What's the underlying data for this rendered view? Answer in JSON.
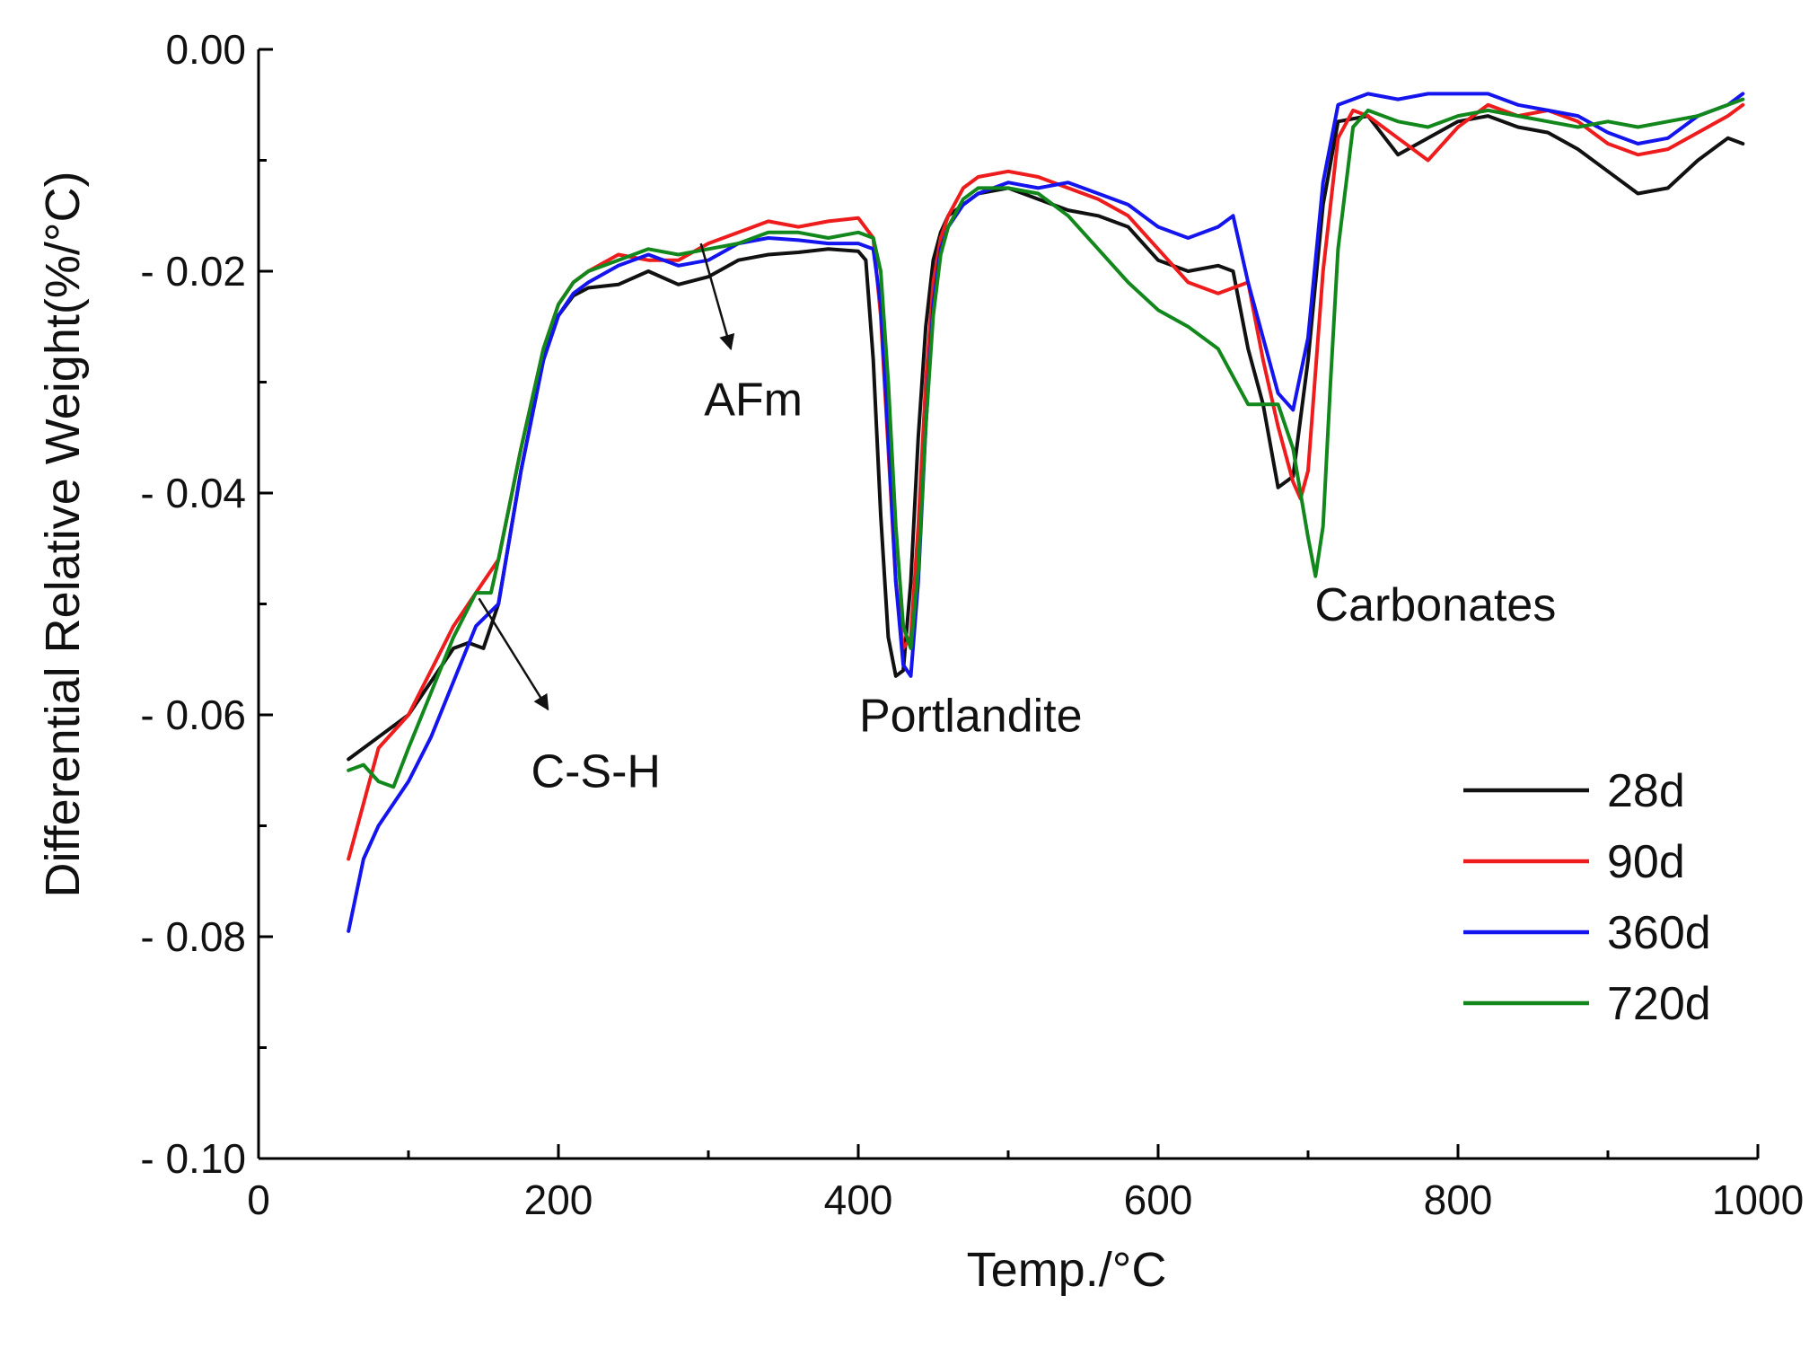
{
  "chart_data": {
    "type": "line",
    "xlabel": "Temp./°C",
    "ylabel": "Differential Relative Weight(%/°C)",
    "xlim": [
      0,
      1000
    ],
    "ylim": [
      -0.1,
      0.0
    ],
    "x_ticks": [
      0,
      200,
      400,
      600,
      800,
      1000
    ],
    "x_tick_labels": [
      "0",
      "200",
      "400",
      "600",
      "800",
      "1000"
    ],
    "y_ticks": [
      0.0,
      -0.02,
      -0.04,
      -0.06,
      -0.08,
      -0.1
    ],
    "y_tick_labels": [
      "0.00",
      "- 0.02",
      "- 0.04",
      "- 0.06",
      "- 0.08",
      "- 0.10"
    ],
    "legend_position": "bottom-right",
    "annotations": [
      {
        "text": "AFm",
        "x": 330,
        "y": -0.033,
        "arrow_from": [
          295,
          -0.0175
        ],
        "arrow_to": [
          315,
          -0.027
        ]
      },
      {
        "text": "Portlandite",
        "x": 475,
        "y": -0.0615
      },
      {
        "text": "Carbonates",
        "x": 785,
        "y": -0.0515
      },
      {
        "text": "C-S-H",
        "x": 225,
        "y": -0.0665,
        "arrow_from": [
          147,
          -0.0495
        ],
        "arrow_to": [
          193,
          -0.0595
        ]
      }
    ],
    "series": [
      {
        "name": "28d",
        "color": "#111111",
        "x": [
          60,
          80,
          100,
          115,
          130,
          140,
          150,
          160,
          175,
          190,
          200,
          210,
          220,
          240,
          260,
          280,
          300,
          320,
          340,
          360,
          380,
          400,
          405,
          410,
          415,
          420,
          425,
          430,
          435,
          440,
          445,
          450,
          455,
          460,
          470,
          480,
          500,
          520,
          540,
          560,
          580,
          600,
          620,
          640,
          650,
          660,
          670,
          680,
          690,
          700,
          710,
          720,
          740,
          760,
          780,
          800,
          820,
          840,
          860,
          880,
          900,
          920,
          940,
          960,
          980,
          990
        ],
        "y": [
          -0.064,
          -0.062,
          -0.06,
          -0.057,
          -0.054,
          -0.0535,
          -0.054,
          -0.05,
          -0.038,
          -0.028,
          -0.024,
          -0.0222,
          -0.0215,
          -0.0212,
          -0.02,
          -0.0212,
          -0.0205,
          -0.019,
          -0.0185,
          -0.0183,
          -0.018,
          -0.0182,
          -0.019,
          -0.028,
          -0.042,
          -0.053,
          -0.0565,
          -0.056,
          -0.048,
          -0.035,
          -0.025,
          -0.019,
          -0.0165,
          -0.015,
          -0.014,
          -0.013,
          -0.0125,
          -0.0135,
          -0.0145,
          -0.015,
          -0.016,
          -0.019,
          -0.02,
          -0.0195,
          -0.02,
          -0.027,
          -0.032,
          -0.0395,
          -0.0385,
          -0.028,
          -0.014,
          -0.0065,
          -0.006,
          -0.0095,
          -0.008,
          -0.0065,
          -0.006,
          -0.007,
          -0.0075,
          -0.009,
          -0.011,
          -0.013,
          -0.0125,
          -0.01,
          -0.008,
          -0.0085
        ]
      },
      {
        "name": "90d",
        "color": "#ee1c1c",
        "x": [
          60,
          70,
          80,
          100,
          115,
          130,
          145,
          160,
          175,
          190,
          200,
          210,
          220,
          240,
          260,
          280,
          300,
          320,
          340,
          360,
          380,
          400,
          410,
          415,
          420,
          425,
          430,
          435,
          440,
          445,
          450,
          455,
          460,
          470,
          480,
          500,
          520,
          540,
          560,
          580,
          600,
          620,
          640,
          660,
          670,
          680,
          690,
          695,
          700,
          710,
          720,
          730,
          740,
          760,
          780,
          800,
          820,
          840,
          860,
          880,
          900,
          920,
          940,
          960,
          980,
          990
        ],
        "y": [
          -0.073,
          -0.068,
          -0.063,
          -0.06,
          -0.056,
          -0.052,
          -0.049,
          -0.046,
          -0.036,
          -0.027,
          -0.023,
          -0.021,
          -0.02,
          -0.0185,
          -0.019,
          -0.019,
          -0.0175,
          -0.0165,
          -0.0155,
          -0.016,
          -0.0155,
          -0.0152,
          -0.017,
          -0.024,
          -0.036,
          -0.048,
          -0.054,
          -0.053,
          -0.043,
          -0.03,
          -0.021,
          -0.017,
          -0.015,
          -0.0125,
          -0.0115,
          -0.011,
          -0.0115,
          -0.0125,
          -0.0135,
          -0.015,
          -0.018,
          -0.021,
          -0.022,
          -0.021,
          -0.028,
          -0.034,
          -0.039,
          -0.0405,
          -0.038,
          -0.02,
          -0.008,
          -0.0055,
          -0.006,
          -0.008,
          -0.01,
          -0.007,
          -0.005,
          -0.006,
          -0.0055,
          -0.0065,
          -0.0085,
          -0.0095,
          -0.009,
          -0.0075,
          -0.006,
          -0.005
        ]
      },
      {
        "name": "360d",
        "color": "#1414ee",
        "x": [
          60,
          70,
          80,
          100,
          115,
          130,
          145,
          160,
          175,
          190,
          200,
          210,
          220,
          240,
          260,
          280,
          300,
          320,
          340,
          360,
          380,
          400,
          410,
          415,
          420,
          425,
          430,
          435,
          440,
          445,
          450,
          455,
          460,
          470,
          480,
          500,
          520,
          540,
          560,
          580,
          600,
          620,
          640,
          650,
          660,
          670,
          680,
          690,
          700,
          710,
          720,
          740,
          760,
          780,
          800,
          820,
          840,
          860,
          880,
          900,
          920,
          940,
          960,
          980,
          990
        ],
        "y": [
          -0.0795,
          -0.073,
          -0.07,
          -0.066,
          -0.062,
          -0.057,
          -0.052,
          -0.05,
          -0.038,
          -0.028,
          -0.024,
          -0.022,
          -0.021,
          -0.0195,
          -0.0185,
          -0.0195,
          -0.019,
          -0.0175,
          -0.017,
          -0.0172,
          -0.0175,
          -0.0175,
          -0.018,
          -0.023,
          -0.035,
          -0.048,
          -0.0555,
          -0.0565,
          -0.048,
          -0.034,
          -0.023,
          -0.018,
          -0.016,
          -0.014,
          -0.013,
          -0.012,
          -0.0125,
          -0.012,
          -0.013,
          -0.014,
          -0.016,
          -0.017,
          -0.016,
          -0.015,
          -0.021,
          -0.026,
          -0.031,
          -0.0325,
          -0.026,
          -0.012,
          -0.005,
          -0.004,
          -0.0045,
          -0.004,
          -0.004,
          -0.004,
          -0.005,
          -0.0055,
          -0.006,
          -0.0075,
          -0.0085,
          -0.008,
          -0.006,
          -0.005,
          -0.004
        ]
      },
      {
        "name": "720d",
        "color": "#12881c",
        "x": [
          60,
          70,
          80,
          90,
          100,
          115,
          130,
          145,
          155,
          160,
          175,
          190,
          200,
          210,
          220,
          240,
          260,
          280,
          300,
          320,
          340,
          360,
          380,
          400,
          410,
          415,
          420,
          425,
          430,
          435,
          440,
          445,
          450,
          455,
          460,
          470,
          480,
          500,
          520,
          540,
          560,
          580,
          600,
          620,
          640,
          660,
          670,
          680,
          690,
          695,
          700,
          705,
          710,
          715,
          720,
          730,
          740,
          760,
          780,
          800,
          820,
          840,
          860,
          880,
          900,
          920,
          940,
          960,
          980,
          990
        ],
        "y": [
          -0.065,
          -0.0645,
          -0.066,
          -0.0665,
          -0.063,
          -0.058,
          -0.053,
          -0.049,
          -0.049,
          -0.046,
          -0.036,
          -0.027,
          -0.023,
          -0.021,
          -0.02,
          -0.019,
          -0.018,
          -0.0185,
          -0.018,
          -0.0175,
          -0.0165,
          -0.0165,
          -0.017,
          -0.0165,
          -0.017,
          -0.02,
          -0.03,
          -0.043,
          -0.052,
          -0.054,
          -0.047,
          -0.034,
          -0.024,
          -0.0185,
          -0.016,
          -0.0135,
          -0.0125,
          -0.0125,
          -0.013,
          -0.015,
          -0.018,
          -0.021,
          -0.0235,
          -0.025,
          -0.027,
          -0.032,
          -0.032,
          -0.032,
          -0.036,
          -0.04,
          -0.044,
          -0.0475,
          -0.043,
          -0.03,
          -0.018,
          -0.007,
          -0.0055,
          -0.0065,
          -0.007,
          -0.006,
          -0.0055,
          -0.006,
          -0.0065,
          -0.007,
          -0.0065,
          -0.007,
          -0.0065,
          -0.006,
          -0.005,
          -0.0045
        ]
      }
    ]
  }
}
